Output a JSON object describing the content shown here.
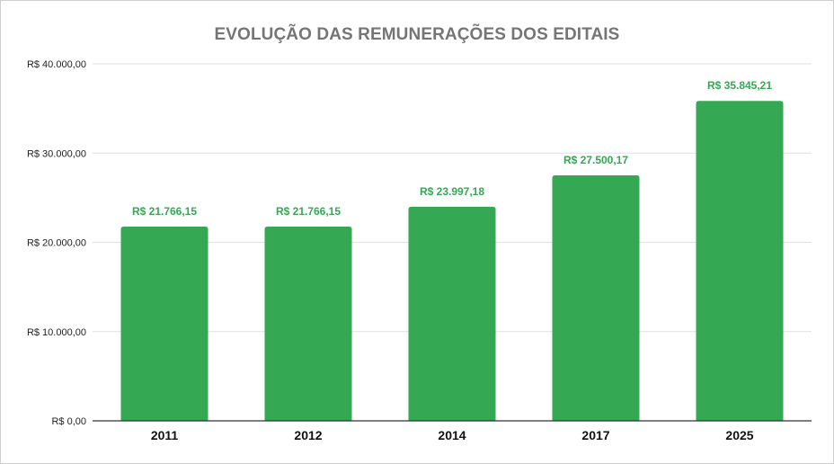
{
  "chart_data": {
    "type": "bar",
    "title": "EVOLUÇÃO DAS REMUNERAÇÕES DOS EDITAIS",
    "xlabel": "",
    "ylabel": "",
    "categories": [
      "2011",
      "2012",
      "2014",
      "2017",
      "2025"
    ],
    "values": [
      21766.15,
      21766.15,
      23997.18,
      27500.17,
      35845.21
    ],
    "data_labels": [
      "R$ 21.766,15",
      "R$ 21.766,15",
      "R$ 23.997,18",
      "R$ 27.500,17",
      "R$ 35.845,21"
    ],
    "ylim": [
      0,
      40000
    ],
    "yticks": [
      0,
      10000,
      20000,
      30000,
      40000
    ],
    "ytick_labels": [
      "R$ 0,00",
      "R$ 10.000,00",
      "R$ 20.000,00",
      "R$ 30.000,00",
      "R$ 40.000,00"
    ],
    "grid": true,
    "legend": "none",
    "colors": {
      "bar": "#34a853",
      "data_label": "#34a853",
      "title": "#757575",
      "grid": "#e0e0e0",
      "axis": "#333333"
    }
  }
}
